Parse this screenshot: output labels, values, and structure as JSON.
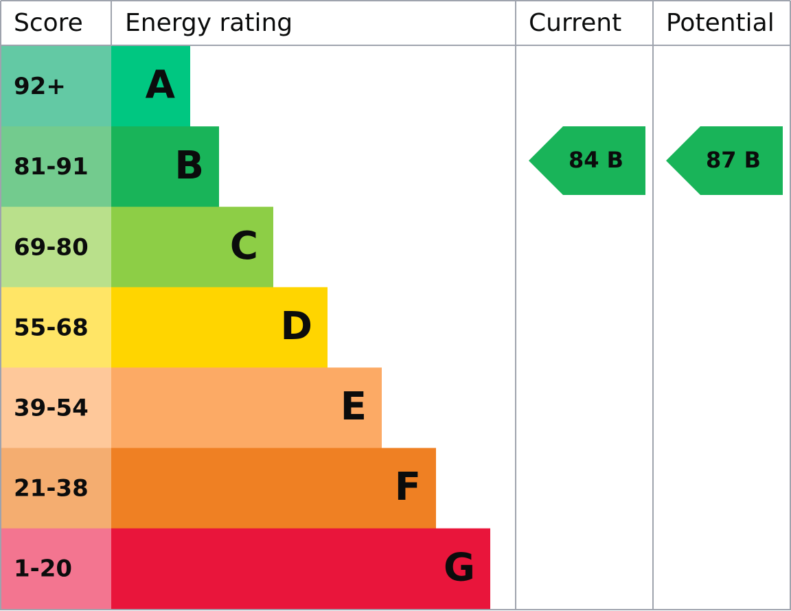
{
  "header": {
    "score": "Score",
    "rating": "Energy rating",
    "current": "Current",
    "potential": "Potential"
  },
  "bands": [
    {
      "score": "92+",
      "letter": "A",
      "color": "#00c781",
      "score_color": "#63c9a4"
    },
    {
      "score": "81-91",
      "letter": "B",
      "color": "#19b459",
      "score_color": "#73cb8e"
    },
    {
      "score": "69-80",
      "letter": "C",
      "color": "#8dce46",
      "score_color": "#b9e08b"
    },
    {
      "score": "55-68",
      "letter": "D",
      "color": "#ffd500",
      "score_color": "#ffe566"
    },
    {
      "score": "39-54",
      "letter": "E",
      "color": "#fcaa65",
      "score_color": "#fec89a"
    },
    {
      "score": "21-38",
      "letter": "F",
      "color": "#ef8023",
      "score_color": "#f4ad70"
    },
    {
      "score": "1-20",
      "letter": "G",
      "color": "#e9153b",
      "score_color": "#f37590"
    }
  ],
  "current": {
    "label": "84 B",
    "color": "#19b459"
  },
  "potential": {
    "label": "87 B",
    "color": "#19b459"
  }
}
